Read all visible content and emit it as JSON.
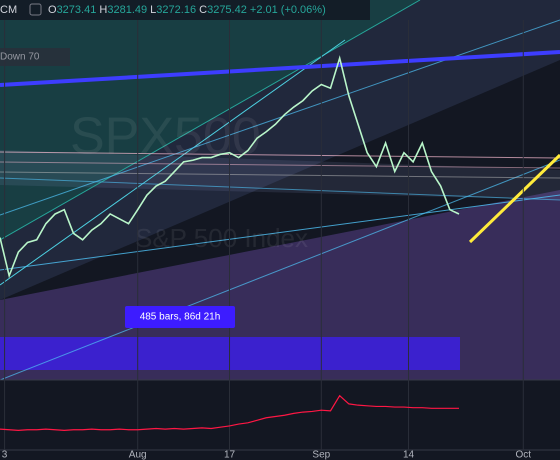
{
  "header": {
    "symbol": "CM",
    "ohlc": [
      {
        "key": "O",
        "value": "3273.41"
      },
      {
        "key": "H",
        "value": "3281.49"
      },
      {
        "key": "L",
        "value": "3272.16"
      },
      {
        "key": "C",
        "value": "3275.42"
      }
    ],
    "change": "+2.01 (+0.06%)"
  },
  "drawing_label": "Down 70",
  "measure_label": "485 bars, 86d 21h",
  "watermark": {
    "symbol": "SPX500",
    "name": "S&P 500 Index"
  },
  "chart_data": {
    "type": "line",
    "x": [
      0,
      2,
      4,
      6,
      8,
      10,
      12,
      14,
      16,
      18,
      20,
      22,
      24,
      26,
      28,
      30,
      32,
      34,
      36,
      38,
      40,
      42,
      44,
      46,
      48,
      50,
      52,
      54,
      56,
      58,
      60,
      62,
      64,
      66,
      68,
      70,
      72,
      74,
      76,
      78,
      80,
      82,
      84,
      86,
      88,
      90,
      92,
      94,
      96,
      98,
      100
    ],
    "xlim": [
      0,
      122
    ],
    "xticks": [
      {
        "value": 1,
        "label": "3"
      },
      {
        "value": 30,
        "label": "Aug"
      },
      {
        "value": 50,
        "label": "17"
      },
      {
        "value": 70,
        "label": "Sep"
      },
      {
        "value": 89,
        "label": "14"
      },
      {
        "value": 114,
        "label": "Oct"
      }
    ],
    "ylim": [
      2950,
      3620
    ],
    "y2lim": [
      0,
      100
    ],
    "series": [
      {
        "color": "#b9f6ca",
        "values": [
          3215,
          3144,
          3188,
          3206,
          3211,
          3241,
          3259,
          3267,
          3223,
          3211,
          3229,
          3241,
          3259,
          3250,
          3241,
          3267,
          3294,
          3311,
          3320,
          3338,
          3356,
          3359,
          3364,
          3364,
          3370,
          3373,
          3364,
          3377,
          3400,
          3412,
          3426,
          3444,
          3458,
          3470,
          3488,
          3500,
          3493,
          3549,
          3479,
          3426,
          3373,
          3347,
          3391,
          3338,
          3373,
          3356,
          3391,
          3338,
          3311,
          3267,
          3259
        ]
      },
      {
        "color": "#ff1744",
        "axis": "y2",
        "values": [
          30,
          29,
          28,
          29,
          29,
          30,
          29,
          28,
          29,
          29,
          30,
          29,
          29,
          30,
          29,
          29,
          30,
          31,
          30,
          31,
          30,
          31,
          32,
          31,
          33,
          35,
          38,
          40,
          44,
          48,
          50,
          52,
          55,
          57,
          58,
          60,
          59,
          83,
          70,
          68,
          67,
          66,
          66,
          65,
          65,
          64,
          64,
          63,
          63,
          63,
          63
        ]
      }
    ]
  }
}
